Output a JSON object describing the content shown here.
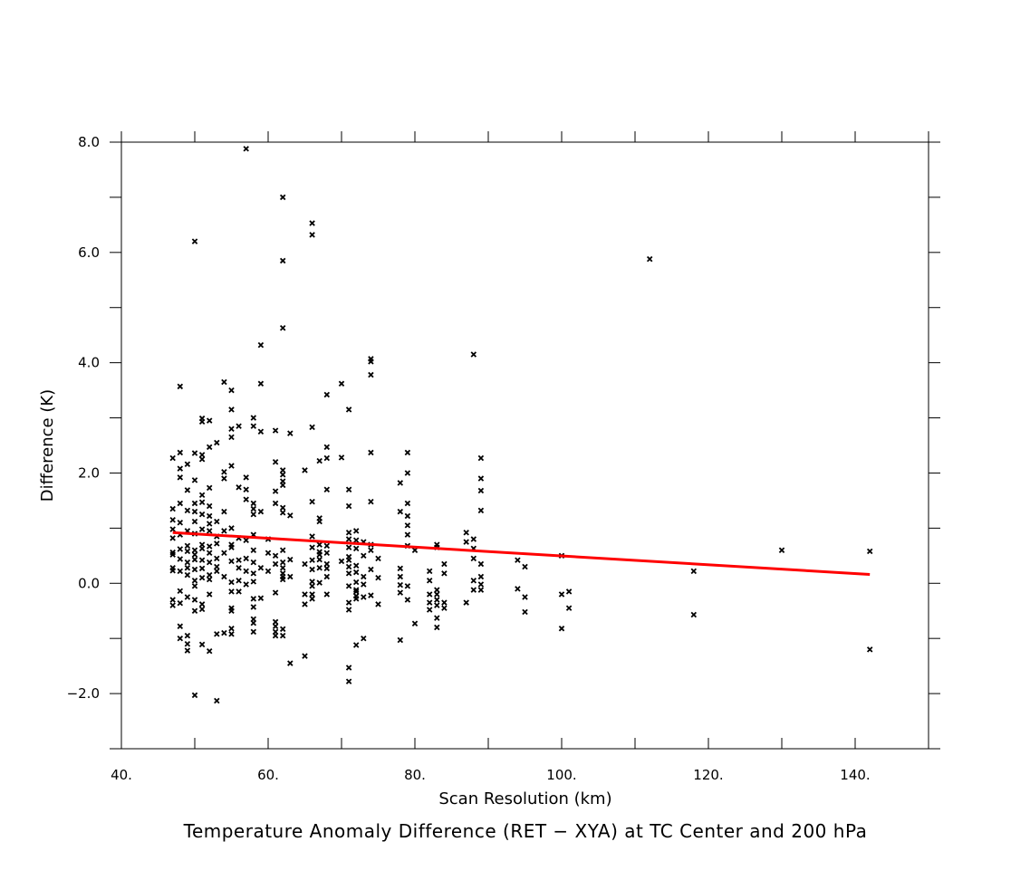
{
  "chart_data": {
    "type": "scatter",
    "title": "Temperature Anomaly Difference (RET − XYA) at TC Center and 200 hPa",
    "xlabel": "Scan Resolution (km)",
    "ylabel": "Difference (K)",
    "xlim": [
      40,
      150
    ],
    "ylim": [
      -3,
      8
    ],
    "x_ticks": [
      40,
      60,
      80,
      100,
      120,
      140
    ],
    "x_tick_labels": [
      "40.",
      "60.",
      "80.",
      "100.",
      "120.",
      "140."
    ],
    "y_ticks": [
      -2,
      0,
      2,
      4,
      6,
      8
    ],
    "y_tick_labels": [
      "−2.0",
      "0.0",
      "2.0",
      "4.0",
      "6.0",
      "8.0"
    ],
    "marker_color": "#000000",
    "fit_color": "#ff0000",
    "grid": false,
    "regression_line": {
      "x": [
        47,
        142
      ],
      "y": [
        0.92,
        0.16
      ]
    },
    "points": [
      [
        47,
        2.27
      ],
      [
        47,
        1.35
      ],
      [
        47,
        1.15
      ],
      [
        47,
        0.98
      ],
      [
        47,
        0.82
      ],
      [
        47,
        0.56
      ],
      [
        47,
        0.52
      ],
      [
        47,
        0.28
      ],
      [
        47,
        0.23
      ],
      [
        47,
        -0.3
      ],
      [
        47,
        -0.4
      ],
      [
        48,
        3.57
      ],
      [
        48,
        2.37
      ],
      [
        48,
        2.08
      ],
      [
        48,
        1.92
      ],
      [
        48,
        1.45
      ],
      [
        48,
        1.1
      ],
      [
        48,
        0.88
      ],
      [
        48,
        0.62
      ],
      [
        48,
        0.44
      ],
      [
        48,
        0.22
      ],
      [
        48,
        -0.14
      ],
      [
        48,
        -0.36
      ],
      [
        48,
        -0.78
      ],
      [
        48,
        -1.0
      ],
      [
        49,
        2.16
      ],
      [
        49,
        1.69
      ],
      [
        49,
        1.32
      ],
      [
        49,
        0.95
      ],
      [
        49,
        0.68
      ],
      [
        49,
        0.58
      ],
      [
        49,
        0.38
      ],
      [
        49,
        0.28
      ],
      [
        49,
        0.15
      ],
      [
        49,
        -0.25
      ],
      [
        49,
        -0.95
      ],
      [
        49,
        -1.1
      ],
      [
        49,
        -1.22
      ],
      [
        50,
        6.2
      ],
      [
        50,
        2.36
      ],
      [
        50,
        1.87
      ],
      [
        50,
        1.45
      ],
      [
        50,
        1.3
      ],
      [
        50,
        1.12
      ],
      [
        50,
        0.9
      ],
      [
        50,
        0.6
      ],
      [
        50,
        0.52
      ],
      [
        50,
        0.43
      ],
      [
        50,
        0.25
      ],
      [
        50,
        0.05
      ],
      [
        50,
        -0.05
      ],
      [
        50,
        -0.3
      ],
      [
        50,
        -0.5
      ],
      [
        50,
        -2.03
      ],
      [
        51,
        2.99
      ],
      [
        51,
        2.93
      ],
      [
        51,
        2.33
      ],
      [
        51,
        2.25
      ],
      [
        51,
        1.6
      ],
      [
        51,
        1.47
      ],
      [
        51,
        1.25
      ],
      [
        51,
        0.98
      ],
      [
        51,
        0.7
      ],
      [
        51,
        0.63
      ],
      [
        51,
        0.42
      ],
      [
        51,
        0.27
      ],
      [
        51,
        0.1
      ],
      [
        51,
        -0.38
      ],
      [
        51,
        -0.47
      ],
      [
        51,
        -1.11
      ],
      [
        52,
        2.95
      ],
      [
        52,
        2.47
      ],
      [
        52,
        1.73
      ],
      [
        52,
        1.4
      ],
      [
        52,
        1.22
      ],
      [
        52,
        1.08
      ],
      [
        52,
        0.95
      ],
      [
        52,
        0.67
      ],
      [
        52,
        0.55
      ],
      [
        52,
        0.38
      ],
      [
        52,
        0.15
      ],
      [
        52,
        0.07
      ],
      [
        52,
        -0.2
      ],
      [
        52,
        -1.23
      ],
      [
        53,
        2.55
      ],
      [
        53,
        1.12
      ],
      [
        53,
        0.85
      ],
      [
        53,
        0.72
      ],
      [
        53,
        0.45
      ],
      [
        53,
        0.3
      ],
      [
        53,
        0.22
      ],
      [
        53,
        -0.92
      ],
      [
        53,
        -2.13
      ],
      [
        54,
        3.65
      ],
      [
        54,
        2.02
      ],
      [
        54,
        1.9
      ],
      [
        54,
        1.3
      ],
      [
        54,
        0.95
      ],
      [
        54,
        0.55
      ],
      [
        54,
        0.12
      ],
      [
        54,
        -0.9
      ],
      [
        55,
        3.5
      ],
      [
        55,
        3.15
      ],
      [
        55,
        2.8
      ],
      [
        55,
        2.65
      ],
      [
        55,
        2.13
      ],
      [
        55,
        1.0
      ],
      [
        55,
        0.7
      ],
      [
        55,
        0.65
      ],
      [
        55,
        0.4
      ],
      [
        55,
        0.02
      ],
      [
        55,
        -0.15
      ],
      [
        55,
        -0.45
      ],
      [
        55,
        -0.5
      ],
      [
        55,
        -0.82
      ],
      [
        55,
        -0.92
      ],
      [
        56,
        2.85
      ],
      [
        56,
        1.74
      ],
      [
        56,
        0.82
      ],
      [
        56,
        0.42
      ],
      [
        56,
        0.28
      ],
      [
        56,
        0.05
      ],
      [
        56,
        -0.15
      ],
      [
        57,
        7.88
      ],
      [
        57,
        1.92
      ],
      [
        57,
        1.7
      ],
      [
        57,
        1.52
      ],
      [
        57,
        0.78
      ],
      [
        57,
        0.45
      ],
      [
        57,
        0.22
      ],
      [
        57,
        -0.02
      ],
      [
        58,
        3.0
      ],
      [
        58,
        2.85
      ],
      [
        58,
        1.45
      ],
      [
        58,
        1.35
      ],
      [
        58,
        1.25
      ],
      [
        58,
        0.88
      ],
      [
        58,
        0.6
      ],
      [
        58,
        0.38
      ],
      [
        58,
        0.18
      ],
      [
        58,
        0.03
      ],
      [
        58,
        -0.28
      ],
      [
        58,
        -0.43
      ],
      [
        58,
        -0.65
      ],
      [
        58,
        -0.72
      ],
      [
        58,
        -0.88
      ],
      [
        59,
        4.32
      ],
      [
        59,
        3.62
      ],
      [
        59,
        2.75
      ],
      [
        59,
        1.3
      ],
      [
        59,
        0.28
      ],
      [
        59,
        -0.27
      ],
      [
        60,
        0.8
      ],
      [
        60,
        0.55
      ],
      [
        60,
        0.22
      ],
      [
        61,
        2.77
      ],
      [
        61,
        2.2
      ],
      [
        61,
        1.67
      ],
      [
        61,
        1.45
      ],
      [
        61,
        0.5
      ],
      [
        61,
        0.35
      ],
      [
        61,
        -0.17
      ],
      [
        61,
        -0.7
      ],
      [
        61,
        -0.78
      ],
      [
        61,
        -0.88
      ],
      [
        61,
        -0.95
      ],
      [
        62,
        7.0
      ],
      [
        62,
        5.85
      ],
      [
        62,
        4.63
      ],
      [
        62,
        2.05
      ],
      [
        62,
        1.97
      ],
      [
        62,
        1.85
      ],
      [
        62,
        1.78
      ],
      [
        62,
        1.37
      ],
      [
        62,
        1.28
      ],
      [
        62,
        0.6
      ],
      [
        62,
        0.38
      ],
      [
        62,
        0.28
      ],
      [
        62,
        0.18
      ],
      [
        62,
        0.12
      ],
      [
        62,
        0.07
      ],
      [
        62,
        -0.83
      ],
      [
        62,
        -0.95
      ],
      [
        63,
        2.72
      ],
      [
        63,
        1.23
      ],
      [
        63,
        0.43
      ],
      [
        63,
        0.12
      ],
      [
        63,
        -1.45
      ],
      [
        65,
        2.05
      ],
      [
        65,
        0.35
      ],
      [
        65,
        -0.2
      ],
      [
        65,
        -0.38
      ],
      [
        65,
        -1.32
      ],
      [
        66,
        6.53
      ],
      [
        66,
        6.32
      ],
      [
        66,
        2.83
      ],
      [
        66,
        1.48
      ],
      [
        66,
        0.85
      ],
      [
        66,
        0.65
      ],
      [
        66,
        0.42
      ],
      [
        66,
        0.25
      ],
      [
        66,
        0.03
      ],
      [
        66,
        -0.05
      ],
      [
        66,
        -0.2
      ],
      [
        66,
        -0.28
      ],
      [
        67,
        2.22
      ],
      [
        67,
        1.18
      ],
      [
        67,
        1.12
      ],
      [
        67,
        0.7
      ],
      [
        67,
        0.57
      ],
      [
        67,
        0.52
      ],
      [
        67,
        0.43
      ],
      [
        67,
        0.28
      ],
      [
        67,
        0.01
      ],
      [
        68,
        3.42
      ],
      [
        68,
        2.47
      ],
      [
        68,
        2.27
      ],
      [
        68,
        1.7
      ],
      [
        68,
        0.68
      ],
      [
        68,
        0.55
      ],
      [
        68,
        0.35
      ],
      [
        68,
        0.27
      ],
      [
        68,
        0.12
      ],
      [
        68,
        -0.2
      ],
      [
        70,
        3.62
      ],
      [
        70,
        2.28
      ],
      [
        70,
        0.4
      ],
      [
        71,
        3.15
      ],
      [
        71,
        1.7
      ],
      [
        71,
        1.4
      ],
      [
        71,
        0.92
      ],
      [
        71,
        0.8
      ],
      [
        71,
        0.65
      ],
      [
        71,
        0.48
      ],
      [
        71,
        0.42
      ],
      [
        71,
        0.3
      ],
      [
        71,
        0.18
      ],
      [
        71,
        -0.05
      ],
      [
        71,
        -0.35
      ],
      [
        71,
        -0.48
      ],
      [
        71,
        -1.53
      ],
      [
        71,
        -1.78
      ],
      [
        72,
        0.95
      ],
      [
        72,
        0.78
      ],
      [
        72,
        0.63
      ],
      [
        72,
        0.32
      ],
      [
        72,
        0.2
      ],
      [
        72,
        0.02
      ],
      [
        72,
        -0.12
      ],
      [
        72,
        -0.15
      ],
      [
        72,
        -0.23
      ],
      [
        72,
        -0.28
      ],
      [
        72,
        -1.12
      ],
      [
        73,
        0.75
      ],
      [
        73,
        0.5
      ],
      [
        73,
        0.12
      ],
      [
        73,
        -0.02
      ],
      [
        73,
        -0.25
      ],
      [
        73,
        -1.0
      ],
      [
        74,
        4.07
      ],
      [
        74,
        4.02
      ],
      [
        74,
        3.78
      ],
      [
        74,
        2.37
      ],
      [
        74,
        1.48
      ],
      [
        74,
        0.7
      ],
      [
        74,
        0.6
      ],
      [
        74,
        0.25
      ],
      [
        74,
        -0.22
      ],
      [
        75,
        0.45
      ],
      [
        75,
        0.1
      ],
      [
        75,
        -0.38
      ],
      [
        78,
        1.82
      ],
      [
        78,
        1.3
      ],
      [
        78,
        0.27
      ],
      [
        78,
        0.12
      ],
      [
        78,
        -0.03
      ],
      [
        78,
        -0.17
      ],
      [
        78,
        -1.03
      ],
      [
        79,
        2.37
      ],
      [
        79,
        2.0
      ],
      [
        79,
        1.45
      ],
      [
        79,
        1.22
      ],
      [
        79,
        1.05
      ],
      [
        79,
        0.88
      ],
      [
        79,
        0.68
      ],
      [
        79,
        -0.05
      ],
      [
        79,
        -0.3
      ],
      [
        80,
        0.6
      ],
      [
        80,
        -0.73
      ],
      [
        82,
        0.22
      ],
      [
        82,
        0.05
      ],
      [
        82,
        -0.2
      ],
      [
        82,
        -0.35
      ],
      [
        82,
        -0.48
      ],
      [
        83,
        0.7
      ],
      [
        83,
        0.65
      ],
      [
        83,
        -0.12
      ],
      [
        83,
        -0.2
      ],
      [
        83,
        -0.3
      ],
      [
        83,
        -0.4
      ],
      [
        83,
        -0.63
      ],
      [
        83,
        -0.8
      ],
      [
        84,
        0.35
      ],
      [
        84,
        0.18
      ],
      [
        84,
        -0.35
      ],
      [
        84,
        -0.45
      ],
      [
        87,
        0.92
      ],
      [
        87,
        0.75
      ],
      [
        87,
        -0.35
      ],
      [
        88,
        4.15
      ],
      [
        88,
        0.8
      ],
      [
        88,
        0.63
      ],
      [
        88,
        0.45
      ],
      [
        88,
        0.05
      ],
      [
        88,
        -0.12
      ],
      [
        89,
        2.27
      ],
      [
        89,
        1.9
      ],
      [
        89,
        1.68
      ],
      [
        89,
        1.32
      ],
      [
        89,
        0.35
      ],
      [
        89,
        0.12
      ],
      [
        89,
        -0.02
      ],
      [
        89,
        -0.12
      ],
      [
        94,
        0.42
      ],
      [
        94,
        -0.1
      ],
      [
        95,
        0.3
      ],
      [
        95,
        -0.25
      ],
      [
        95,
        -0.52
      ],
      [
        100,
        0.5
      ],
      [
        100,
        -0.2
      ],
      [
        100,
        -0.82
      ],
      [
        101,
        -0.15
      ],
      [
        101,
        -0.45
      ],
      [
        112,
        5.88
      ],
      [
        118,
        0.22
      ],
      [
        118,
        -0.57
      ],
      [
        130,
        0.6
      ],
      [
        142,
        0.58
      ],
      [
        142,
        -1.2
      ]
    ]
  }
}
